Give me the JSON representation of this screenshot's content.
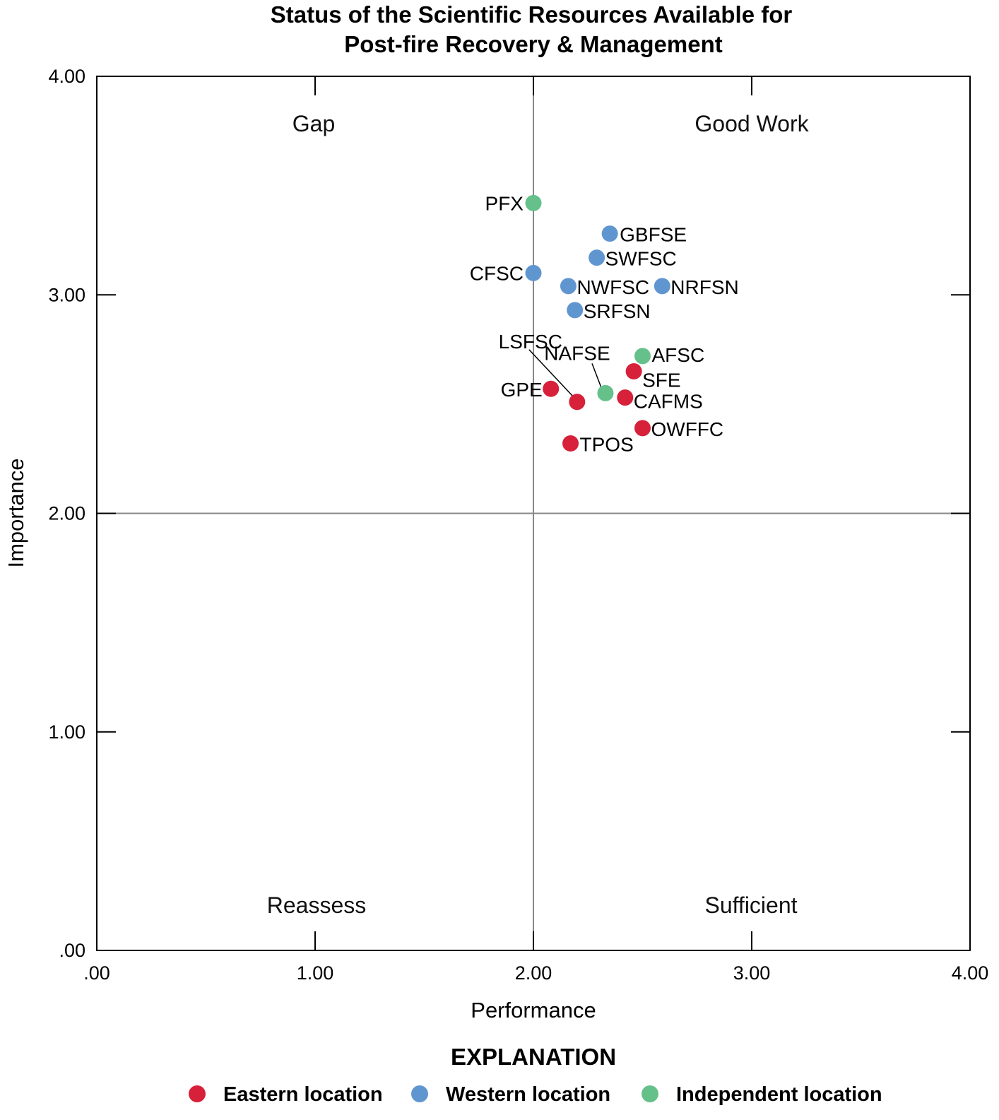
{
  "chart_data": {
    "type": "scatter",
    "title": [
      "Status of the Scientific Resources Available for",
      "Post-fire Recovery & Management"
    ],
    "xlabel": "Performance",
    "ylabel": "Importance",
    "xlim": [
      0,
      4
    ],
    "ylim": [
      0,
      4
    ],
    "xticks": [
      0,
      1,
      2,
      3,
      4
    ],
    "yticks": [
      0,
      1,
      2,
      3,
      4
    ],
    "xtick_labels": [
      ".00",
      "1.00",
      "2.00",
      "3.00",
      "4.00"
    ],
    "ytick_labels": [
      ".00",
      "1.00",
      "2.00",
      "3.00",
      "4.00"
    ],
    "grid": false,
    "reference_lines": {
      "x": 2.0,
      "y": 2.0
    },
    "quadrants": {
      "top_left": "Gap",
      "top_right": "Good Work",
      "bottom_left": "Reassess",
      "bottom_right": "Sufficient"
    },
    "series": [
      {
        "name": "Eastern location",
        "color": "#d7203a",
        "points": [
          {
            "label": "SFE",
            "x": 2.46,
            "y": 2.65
          },
          {
            "label": "GPE",
            "x": 2.08,
            "y": 2.57
          },
          {
            "label": "LSFSC",
            "x": 2.2,
            "y": 2.51
          },
          {
            "label": "CAFMS",
            "x": 2.42,
            "y": 2.53
          },
          {
            "label": "OWFFC",
            "x": 2.5,
            "y": 2.39
          },
          {
            "label": "TPOS",
            "x": 2.17,
            "y": 2.32
          }
        ]
      },
      {
        "name": "Western location",
        "color": "#6096d0",
        "points": [
          {
            "label": "GBFSE",
            "x": 2.35,
            "y": 3.28
          },
          {
            "label": "SWFSC",
            "x": 2.29,
            "y": 3.17
          },
          {
            "label": "CFSC",
            "x": 2.0,
            "y": 3.1
          },
          {
            "label": "NWFSC",
            "x": 2.16,
            "y": 3.04
          },
          {
            "label": "NRFSN",
            "x": 2.59,
            "y": 3.04
          },
          {
            "label": "SRFSN",
            "x": 2.19,
            "y": 2.93
          }
        ]
      },
      {
        "name": "Independent location",
        "color": "#66c08a",
        "points": [
          {
            "label": "PFX",
            "x": 2.0,
            "y": 3.42
          },
          {
            "label": "AFSC",
            "x": 2.5,
            "y": 2.72
          },
          {
            "label": "NAFSE",
            "x": 2.33,
            "y": 2.55
          }
        ]
      }
    ],
    "legend": {
      "title": "EXPLANATION",
      "placement": "bottom",
      "entries": [
        "Eastern location",
        "Western location",
        "Independent location"
      ]
    }
  }
}
